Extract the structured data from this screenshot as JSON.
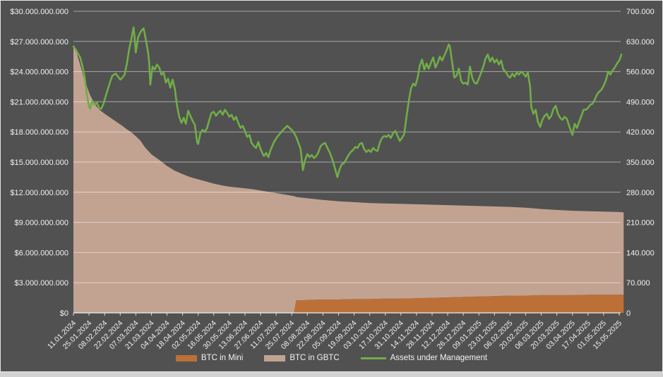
{
  "page": {
    "sheet_background": "#D2D2D2",
    "chart_background": "#515151",
    "chart_border": "#E6E6E6",
    "gridline_color": "rgba(255,255,255,0.50)",
    "axis_line_color": "rgba(255,255,255,0.78)",
    "axis_text_color": "#F2F2F2"
  },
  "chart_data": {
    "type": "combo",
    "title": "",
    "legend_position": "bottom",
    "x_axis": {
      "start_date": "11.01.2024",
      "interval_days": 14,
      "labels": [
        "11.01.2024",
        "25.01.2024",
        "08.02.2024",
        "22.02.2024",
        "07.03.2024",
        "21.03.2024",
        "04.04.2024",
        "18.04.2024",
        "02.05.2024",
        "16.05.2024",
        "30.05.2024",
        "13.06.2024",
        "27.06.2024",
        "11.07.2024",
        "25.07.2024",
        "08.08.2024",
        "22.08.2024",
        "05.09.2024",
        "19.09.2024",
        "03.10.2024",
        "17.10.2024",
        "31.10.2024",
        "14.11.2024",
        "28.11.2024",
        "12.12.2024",
        "26.12.2024",
        "09.01.2025",
        "23.01.2025",
        "06.02.2025",
        "20.02.2025",
        "06.03.2025",
        "20.03.2025",
        "03.04.2025",
        "17.04.2025",
        "01.05.2025",
        "15.05.2025"
      ]
    },
    "left_axis": {
      "unit": "USD",
      "min": 0,
      "max": 30000000000,
      "step": 3000000000,
      "tick_labels": [
        "$30.000.000.000",
        "$27.000.000.000",
        "$24.000.000.000",
        "$21.000.000.000",
        "$18.000.000.000",
        "$15.000.000.000",
        "$12.000.000.000",
        "$9.000.000.000",
        "$6.000.000.000",
        "$3.000.000.000",
        "$0"
      ]
    },
    "right_axis": {
      "unit": "BTC",
      "min": 0,
      "max": 700000,
      "step": 70000,
      "tick_labels": [
        "700.000",
        "630.000",
        "560.000",
        "490.000",
        "420.000",
        "350.000",
        "280.000",
        "210.000",
        "140.000",
        "70.000",
        "0"
      ]
    },
    "area_t_days": [
      0,
      3,
      6,
      9,
      12,
      15,
      18,
      21,
      24,
      28,
      32,
      36,
      40,
      44,
      48,
      52,
      56,
      60,
      64,
      70,
      77,
      84,
      91,
      98,
      105,
      112,
      119,
      126,
      133,
      140,
      147,
      154,
      161,
      168,
      175,
      182,
      189,
      196,
      198,
      200,
      210,
      224,
      238,
      252,
      266,
      280,
      294,
      308,
      322,
      336,
      350,
      364,
      378,
      392,
      406,
      420,
      434,
      448,
      462,
      476,
      490,
      494
    ],
    "series": [
      {
        "name": "BTC in Mini",
        "type": "area",
        "axis": "right",
        "color": "#BC7038",
        "values_btc": [
          0,
          0,
          0,
          0,
          0,
          0,
          0,
          0,
          0,
          0,
          0,
          0,
          0,
          0,
          0,
          0,
          0,
          0,
          0,
          0,
          0,
          0,
          0,
          0,
          0,
          0,
          0,
          0,
          0,
          0,
          0,
          0,
          0,
          0,
          0,
          0,
          0,
          0,
          0,
          29000,
          30000,
          31000,
          31000,
          32000,
          32000,
          33000,
          33000,
          34000,
          35000,
          36000,
          37000,
          38000,
          39000,
          40000,
          40000,
          41000,
          41000,
          41000,
          42000,
          42000,
          42000,
          42000
        ]
      },
      {
        "name": "BTC in GBTC",
        "type": "area",
        "axis": "right",
        "color": "#C2A392",
        "values_btc": [
          619000,
          602000,
          576000,
          548000,
          526000,
          505000,
          490000,
          478000,
          470000,
          462000,
          455000,
          448000,
          441000,
          434000,
          426000,
          419000,
          410000,
          400000,
          385000,
          368000,
          355000,
          341000,
          330000,
          322000,
          315000,
          310000,
          305000,
          300000,
          296000,
          293000,
          291000,
          289000,
          287000,
          284000,
          281000,
          278000,
          275000,
          272000,
          271000,
          240000,
          236000,
          231000,
          228000,
          225000,
          223000,
          221000,
          220000,
          218000,
          216000,
          214000,
          212000,
          210000,
          208000,
          206000,
          204000,
          200000,
          198000,
          196000,
          194000,
          193000,
          192000,
          191000
        ]
      },
      {
        "name": "Assets under Management",
        "type": "line",
        "axis": "left",
        "color": "#70AD47",
        "points_t_usd_billion": [
          [
            0,
            26.5
          ],
          [
            2,
            26.2
          ],
          [
            4,
            25.8
          ],
          [
            6,
            25.4
          ],
          [
            8,
            24.6
          ],
          [
            10,
            23.5
          ],
          [
            12,
            21.8
          ],
          [
            14,
            20.5
          ],
          [
            15,
            20.3
          ],
          [
            17,
            21.1
          ],
          [
            19,
            20.7
          ],
          [
            21,
            20.9
          ],
          [
            23,
            20.4
          ],
          [
            25,
            20.3
          ],
          [
            27,
            20.8
          ],
          [
            28,
            21.2
          ],
          [
            31,
            22.3
          ],
          [
            33,
            23.0
          ],
          [
            35,
            23.6
          ],
          [
            38,
            23.8
          ],
          [
            40,
            23.5
          ],
          [
            42,
            23.2
          ],
          [
            44,
            23.4
          ],
          [
            46,
            23.7
          ],
          [
            48,
            24.8
          ],
          [
            50,
            26.2
          ],
          [
            52,
            27.2
          ],
          [
            54,
            28.4
          ],
          [
            55,
            27.3
          ],
          [
            56,
            25.9
          ],
          [
            57,
            26.6
          ],
          [
            58,
            27.4
          ],
          [
            60,
            27.9
          ],
          [
            62,
            28.2
          ],
          [
            63,
            28.3
          ],
          [
            65,
            27.2
          ],
          [
            67,
            25.9
          ],
          [
            68,
            24.9
          ],
          [
            69,
            22.7
          ],
          [
            71,
            24.5
          ],
          [
            73,
            24.2
          ],
          [
            75,
            24.7
          ],
          [
            77,
            24.4
          ],
          [
            79,
            23.7
          ],
          [
            81,
            23.9
          ],
          [
            83,
            22.9
          ],
          [
            85,
            23.3
          ],
          [
            87,
            22.4
          ],
          [
            89,
            23.2
          ],
          [
            91,
            22.3
          ],
          [
            93,
            20.6
          ],
          [
            95,
            19.5
          ],
          [
            97,
            18.9
          ],
          [
            99,
            19.4
          ],
          [
            101,
            18.8
          ],
          [
            103,
            20.1
          ],
          [
            105,
            19.6
          ],
          [
            107,
            19.1
          ],
          [
            109,
            18.7
          ],
          [
            111,
            17.0
          ],
          [
            112,
            16.8
          ],
          [
            114,
            17.9
          ],
          [
            116,
            18.2
          ],
          [
            118,
            18.0
          ],
          [
            120,
            18.4
          ],
          [
            122,
            19.2
          ],
          [
            124,
            19.9
          ],
          [
            126,
            20.0
          ],
          [
            128,
            19.6
          ],
          [
            130,
            19.9
          ],
          [
            132,
            20.1
          ],
          [
            134,
            19.7
          ],
          [
            136,
            20.2
          ],
          [
            138,
            19.9
          ],
          [
            140,
            19.5
          ],
          [
            142,
            19.7
          ],
          [
            144,
            19.2
          ],
          [
            146,
            19.5
          ],
          [
            148,
            18.9
          ],
          [
            150,
            18.4
          ],
          [
            152,
            18.6
          ],
          [
            154,
            18.1
          ],
          [
            156,
            17.5
          ],
          [
            158,
            17.7
          ],
          [
            160,
            16.9
          ],
          [
            162,
            16.6
          ],
          [
            164,
            16.4
          ],
          [
            166,
            17.0
          ],
          [
            168,
            16.3
          ],
          [
            170,
            15.8
          ],
          [
            171,
            15.6
          ],
          [
            173,
            15.9
          ],
          [
            175,
            15.5
          ],
          [
            177,
            16.2
          ],
          [
            180,
            17.0
          ],
          [
            183,
            17.5
          ],
          [
            186,
            17.9
          ],
          [
            189,
            18.3
          ],
          [
            192,
            18.6
          ],
          [
            194,
            18.4
          ],
          [
            196,
            18.2
          ],
          [
            198,
            17.9
          ],
          [
            200,
            17.5
          ],
          [
            202,
            16.9
          ],
          [
            204,
            16.3
          ],
          [
            206,
            14.2
          ],
          [
            208,
            15.2
          ],
          [
            210,
            15.8
          ],
          [
            212,
            15.5
          ],
          [
            214,
            15.7
          ],
          [
            216,
            15.4
          ],
          [
            218,
            15.6
          ],
          [
            220,
            16.0
          ],
          [
            222,
            16.6
          ],
          [
            224,
            16.8
          ],
          [
            226,
            16.9
          ],
          [
            228,
            16.4
          ],
          [
            230,
            16.0
          ],
          [
            232,
            15.4
          ],
          [
            234,
            14.7
          ],
          [
            236,
            13.9
          ],
          [
            237,
            13.5
          ],
          [
            239,
            14.3
          ],
          [
            241,
            14.8
          ],
          [
            243,
            14.9
          ],
          [
            245,
            15.3
          ],
          [
            247,
            15.7
          ],
          [
            249,
            16.0
          ],
          [
            251,
            16.2
          ],
          [
            253,
            16.5
          ],
          [
            255,
            16.4
          ],
          [
            257,
            16.8
          ],
          [
            259,
            16.9
          ],
          [
            261,
            16.3
          ],
          [
            263,
            16.0
          ],
          [
            265,
            16.2
          ],
          [
            267,
            16.0
          ],
          [
            269,
            16.4
          ],
          [
            271,
            16.2
          ],
          [
            273,
            16.1
          ],
          [
            275,
            16.9
          ],
          [
            277,
            17.4
          ],
          [
            279,
            17.6
          ],
          [
            281,
            17.5
          ],
          [
            283,
            17.7
          ],
          [
            285,
            17.4
          ],
          [
            287,
            17.9
          ],
          [
            289,
            18.1
          ],
          [
            291,
            17.6
          ],
          [
            293,
            17.1
          ],
          [
            295,
            17.4
          ],
          [
            297,
            17.8
          ],
          [
            299,
            19.5
          ],
          [
            301,
            21.0
          ],
          [
            303,
            22.3
          ],
          [
            305,
            22.8
          ],
          [
            307,
            22.6
          ],
          [
            309,
            23.4
          ],
          [
            311,
            24.6
          ],
          [
            313,
            25.2
          ],
          [
            315,
            24.2
          ],
          [
            317,
            24.8
          ],
          [
            319,
            24.3
          ],
          [
            321,
            24.9
          ],
          [
            323,
            25.4
          ],
          [
            325,
            24.4
          ],
          [
            327,
            24.9
          ],
          [
            329,
            25.5
          ],
          [
            331,
            25.1
          ],
          [
            333,
            25.6
          ],
          [
            335,
            26.1
          ],
          [
            337,
            26.7
          ],
          [
            338,
            26.5
          ],
          [
            340,
            24.9
          ],
          [
            342,
            23.4
          ],
          [
            344,
            23.6
          ],
          [
            346,
            24.3
          ],
          [
            348,
            23.1
          ],
          [
            350,
            22.8
          ],
          [
            352,
            22.9
          ],
          [
            354,
            22.7
          ],
          [
            356,
            24.5
          ],
          [
            358,
            23.4
          ],
          [
            360,
            22.9
          ],
          [
            362,
            22.8
          ],
          [
            364,
            23.3
          ],
          [
            366,
            23.9
          ],
          [
            368,
            24.5
          ],
          [
            370,
            25.3
          ],
          [
            372,
            25.7
          ],
          [
            374,
            25.0
          ],
          [
            376,
            25.4
          ],
          [
            378,
            24.9
          ],
          [
            380,
            25.2
          ],
          [
            382,
            24.7
          ],
          [
            384,
            25.1
          ],
          [
            386,
            24.2
          ],
          [
            388,
            24.0
          ],
          [
            390,
            23.6
          ],
          [
            392,
            23.4
          ],
          [
            394,
            23.8
          ],
          [
            396,
            23.5
          ],
          [
            398,
            23.9
          ],
          [
            400,
            23.7
          ],
          [
            402,
            24.0
          ],
          [
            404,
            23.8
          ],
          [
            406,
            23.5
          ],
          [
            408,
            23.9
          ],
          [
            410,
            22.5
          ],
          [
            411,
            20.5
          ],
          [
            413,
            19.8
          ],
          [
            415,
            20.2
          ],
          [
            417,
            19.0
          ],
          [
            419,
            18.5
          ],
          [
            421,
            19.2
          ],
          [
            423,
            19.6
          ],
          [
            425,
            19.8
          ],
          [
            427,
            19.3
          ],
          [
            429,
            19.6
          ],
          [
            431,
            20.3
          ],
          [
            433,
            20.6
          ],
          [
            435,
            19.8
          ],
          [
            437,
            19.4
          ],
          [
            439,
            19.2
          ],
          [
            441,
            19.5
          ],
          [
            443,
            19.3
          ],
          [
            445,
            18.6
          ],
          [
            447,
            18.0
          ],
          [
            448,
            17.7
          ],
          [
            450,
            18.8
          ],
          [
            452,
            18.4
          ],
          [
            454,
            19.0
          ],
          [
            456,
            19.6
          ],
          [
            458,
            20.2
          ],
          [
            460,
            20.2
          ],
          [
            462,
            20.4
          ],
          [
            464,
            20.7
          ],
          [
            466,
            20.8
          ],
          [
            468,
            21.2
          ],
          [
            470,
            21.7
          ],
          [
            472,
            22.0
          ],
          [
            474,
            22.2
          ],
          [
            476,
            22.6
          ],
          [
            478,
            23.1
          ],
          [
            480,
            24.0
          ],
          [
            482,
            23.7
          ],
          [
            484,
            24.1
          ],
          [
            486,
            24.4
          ],
          [
            488,
            24.8
          ],
          [
            490,
            25.1
          ],
          [
            492,
            25.7
          ]
        ]
      }
    ]
  }
}
